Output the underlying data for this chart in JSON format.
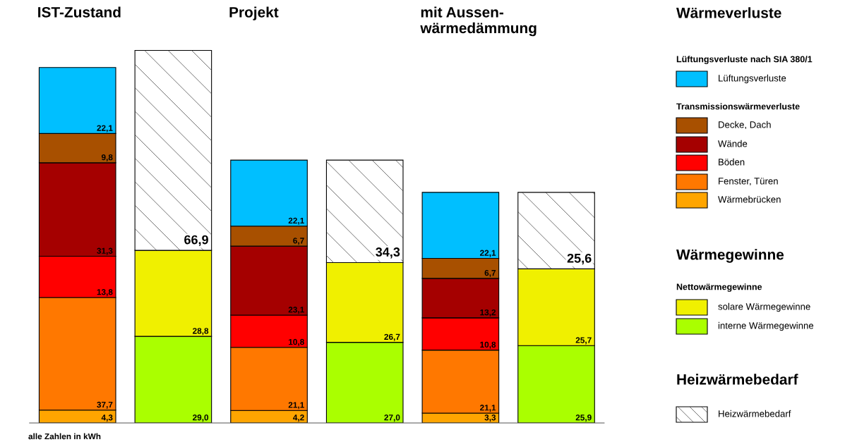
{
  "chart_data": {
    "type": "bar",
    "stacked": true,
    "legend": "right",
    "categories": [
      "IST-Zustand",
      null,
      "Projekt",
      null,
      "mit Aussen-\nwärmedämmung",
      null
    ],
    "series": [
      {
        "name": "Wärmebrücken",
        "color": "#ffa500",
        "values": [
          4.3,
          null,
          4.2,
          null,
          3.3,
          null
        ],
        "value_labels": [
          "4,3",
          null,
          "4,2",
          null,
          "3,3",
          null
        ]
      },
      {
        "name": "Fenster, Türen",
        "color": "#ff7800",
        "values": [
          37.7,
          null,
          21.1,
          null,
          21.1,
          null
        ],
        "value_labels": [
          "37,7",
          null,
          "21,1",
          null,
          "21,1",
          null
        ]
      },
      {
        "name": "Böden",
        "color": "#ff0000",
        "values": [
          13.8,
          null,
          10.8,
          null,
          10.8,
          null
        ],
        "value_labels": [
          "13,8",
          null,
          "10,8",
          null,
          "10,8",
          null
        ]
      },
      {
        "name": "Wände",
        "color": "#a50000",
        "values": [
          31.3,
          null,
          23.1,
          null,
          13.2,
          null
        ],
        "value_labels": [
          "31,3",
          null,
          "23,1",
          null,
          "13,2",
          null
        ]
      },
      {
        "name": "Decke, Dach",
        "color": "#a85000",
        "values": [
          9.8,
          null,
          6.7,
          null,
          6.7,
          null
        ],
        "value_labels": [
          "9,8",
          null,
          "6,7",
          null,
          "6,7",
          null
        ]
      },
      {
        "name": "Lüftungsverluste",
        "color": "#00bfff",
        "values": [
          22.1,
          null,
          22.1,
          null,
          22.1,
          null
        ],
        "value_labels": [
          "22,1",
          null,
          "22,1",
          null,
          "22,1",
          null
        ]
      },
      {
        "name": "interne Wärmegewinne",
        "color": "#aaff00",
        "values": [
          null,
          29.0,
          null,
          27.0,
          null,
          25.9
        ],
        "value_labels": [
          null,
          "29,0",
          null,
          "27,0",
          null,
          "25,9"
        ]
      },
      {
        "name": "solare Wärmegewinne",
        "color": "#f0f000",
        "values": [
          null,
          28.8,
          null,
          26.7,
          null,
          25.7
        ],
        "value_labels": [
          null,
          "28,8",
          null,
          "26,7",
          null,
          "25,7"
        ]
      },
      {
        "name": "Heizwärmebedarf",
        "color": "#ffffff",
        "values": [
          null,
          66.9,
          null,
          34.3,
          null,
          25.6
        ],
        "value_labels": [
          null,
          "66,9",
          null,
          "34,3",
          null,
          "25,6"
        ]
      }
    ],
    "annotations": [
      "alle Zahlen in kWh",
      "Wärmeverluste",
      "Lüftungsverluste nach SIA 380/1",
      "Transmissionswärmeverluste",
      "Wärmegewinne",
      "Nettowärmegewinne",
      "Heizwärmebedarf"
    ]
  }
}
